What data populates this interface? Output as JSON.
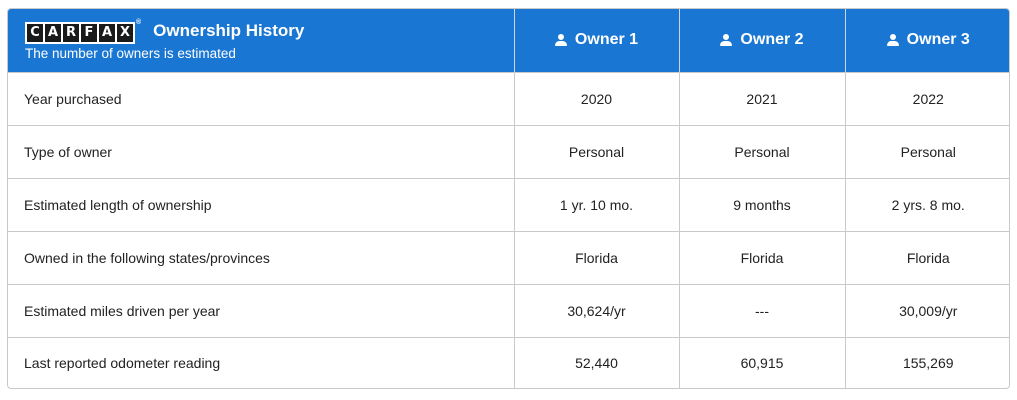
{
  "header": {
    "logo_letters": [
      "C",
      "A",
      "R",
      "F",
      "A",
      "X"
    ],
    "logo_registered": "®",
    "title": "Ownership History",
    "subtitle": "The number of owners is estimated",
    "owners": [
      "Owner 1",
      "Owner 2",
      "Owner 3"
    ],
    "colors": {
      "header_bg": "#1976d2",
      "header_text": "#ffffff"
    }
  },
  "rows": [
    {
      "label": "Year purchased",
      "values": [
        "2020",
        "2021",
        "2022"
      ]
    },
    {
      "label": "Type of owner",
      "values": [
        "Personal",
        "Personal",
        "Personal"
      ]
    },
    {
      "label": "Estimated length of ownership",
      "values": [
        "1 yr. 10 mo.",
        "9 months",
        "2 yrs. 8 mo."
      ]
    },
    {
      "label": "Owned in the following states/provinces",
      "values": [
        "Florida",
        "Florida",
        "Florida"
      ]
    },
    {
      "label": "Estimated miles driven per year",
      "values": [
        "30,624/yr",
        "---",
        "30,009/yr"
      ]
    },
    {
      "label": "Last reported odometer reading",
      "values": [
        "52,440",
        "60,915",
        "155,269"
      ]
    }
  ]
}
